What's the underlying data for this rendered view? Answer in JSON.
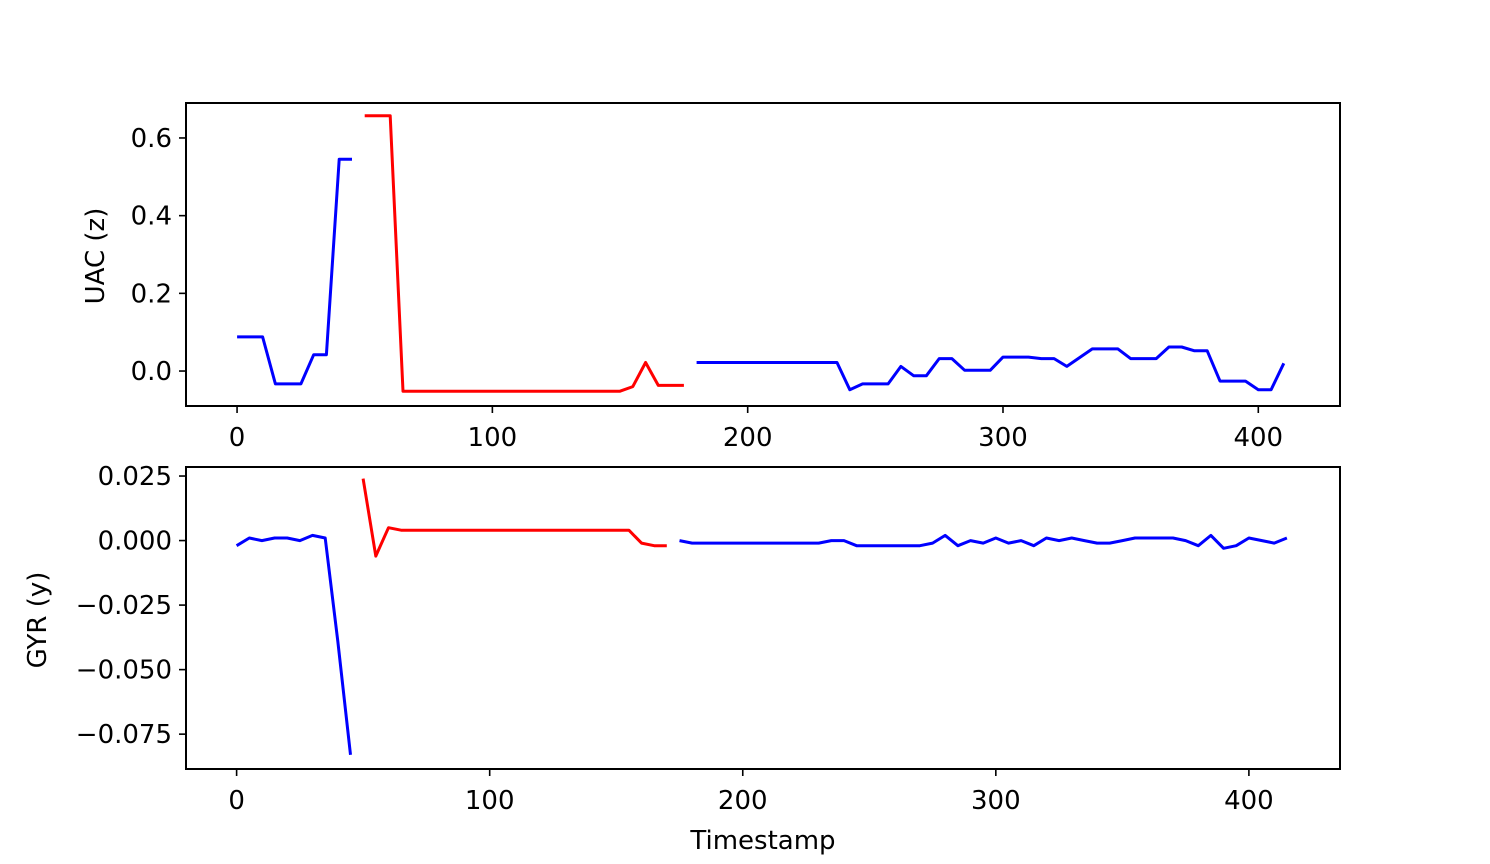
{
  "chart_data": [
    {
      "type": "line",
      "xlabel": "",
      "ylabel": "UAC (z)",
      "xlim": [
        -20,
        432
      ],
      "ylim": [
        -0.09,
        0.69
      ],
      "xticks": [
        0,
        100,
        200,
        300,
        400
      ],
      "yticks": [
        0.0,
        0.2,
        0.4,
        0.6
      ],
      "xtick_labels": [
        "0",
        "100",
        "200",
        "300",
        "400"
      ],
      "ytick_labels": [
        "0.0",
        "0.2",
        "0.4",
        "0.6"
      ],
      "grid": false,
      "series": [
        {
          "color": "#0000ff",
          "x": [
            0,
            10,
            15,
            25,
            30,
            35,
            40,
            45
          ],
          "y": [
            0.088,
            0.088,
            -0.033,
            -0.033,
            0.042,
            0.042,
            0.545,
            0.545
          ]
        },
        {
          "color": "#ff0000",
          "x": [
            50,
            60,
            65,
            150,
            155,
            160,
            165,
            175
          ],
          "y": [
            0.657,
            0.657,
            -0.052,
            -0.052,
            -0.04,
            0.022,
            -0.037,
            -0.037
          ]
        },
        {
          "color": "#0000ff",
          "x": [
            180,
            235,
            240,
            245,
            255,
            260,
            265,
            270,
            275,
            280,
            285,
            295,
            300,
            310,
            315,
            320,
            325,
            335,
            345,
            350,
            360,
            365,
            370,
            375,
            380,
            385,
            395,
            400,
            405,
            410
          ],
          "y": [
            0.022,
            0.022,
            -0.048,
            -0.033,
            -0.033,
            0.012,
            -0.012,
            -0.012,
            0.032,
            0.032,
            0.002,
            0.002,
            0.036,
            0.036,
            0.032,
            0.032,
            0.012,
            0.057,
            0.057,
            0.032,
            0.032,
            0.062,
            0.062,
            0.052,
            0.052,
            -0.026,
            -0.026,
            -0.048,
            -0.048,
            0.02
          ]
        }
      ]
    },
    {
      "type": "line",
      "xlabel": "Timestamp",
      "ylabel": "GYR (y)",
      "xlim": [
        -20,
        436
      ],
      "ylim": [
        -0.0885,
        0.0285
      ],
      "xticks": [
        0,
        100,
        200,
        300,
        400
      ],
      "yticks": [
        0.025,
        0.0,
        -0.025,
        -0.05,
        -0.075
      ],
      "xtick_labels": [
        "0",
        "100",
        "200",
        "300",
        "400"
      ],
      "ytick_labels": [
        "0.025",
        "0.000",
        "−0.025",
        "−0.050",
        "−0.075"
      ],
      "grid": false,
      "series": [
        {
          "color": "#0000ff",
          "x": [
            0,
            5,
            10,
            15,
            20,
            25,
            30,
            35,
            40,
            45
          ],
          "y": [
            -0.002,
            0.001,
            0.0,
            0.001,
            0.001,
            0.0,
            0.002,
            0.001,
            -0.039,
            -0.083
          ]
        },
        {
          "color": "#ff0000",
          "x": [
            50,
            55,
            60,
            65,
            150,
            155,
            160,
            165,
            170
          ],
          "y": [
            0.024,
            -0.006,
            0.005,
            0.004,
            0.004,
            0.004,
            -0.001,
            -0.002,
            -0.002
          ]
        },
        {
          "color": "#0000ff",
          "x": [
            175,
            180,
            230,
            235,
            240,
            245,
            270,
            275,
            280,
            285,
            290,
            295,
            300,
            305,
            310,
            315,
            320,
            325,
            330,
            335,
            340,
            345,
            350,
            355,
            360,
            370,
            375,
            380,
            385,
            390,
            395,
            400,
            410,
            415
          ],
          "y": [
            0.0,
            -0.001,
            -0.001,
            0.0,
            0.0,
            -0.002,
            -0.002,
            -0.001,
            0.002,
            -0.002,
            0.0,
            -0.001,
            0.001,
            -0.001,
            0.0,
            -0.002,
            0.001,
            0.0,
            0.001,
            0.0,
            -0.001,
            -0.001,
            0.0,
            0.001,
            0.001,
            0.001,
            0.0,
            -0.002,
            0.002,
            -0.003,
            -0.002,
            0.001,
            -0.001,
            0.001
          ]
        }
      ]
    }
  ]
}
